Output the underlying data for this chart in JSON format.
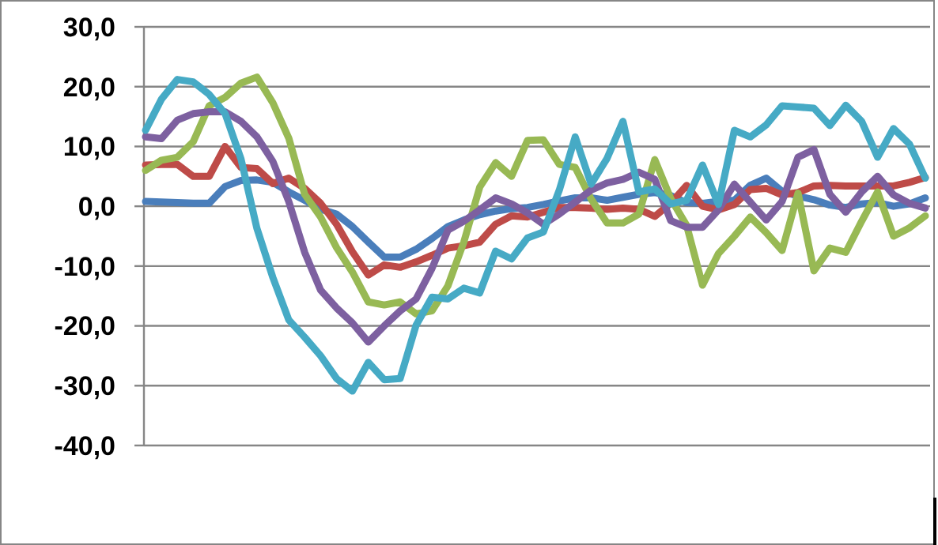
{
  "chart_data": {
    "type": "line",
    "categories": [
      null,
      null,
      null,
      null,
      null,
      null,
      null,
      null,
      null,
      null,
      null,
      null,
      null,
      null,
      null,
      null,
      null,
      null,
      null,
      null,
      null,
      null,
      null,
      null,
      null,
      null,
      null,
      null,
      null,
      null,
      null,
      null,
      null,
      null,
      null,
      null,
      null,
      null,
      null,
      null,
      null,
      null,
      null,
      null,
      null,
      null,
      null,
      null,
      null,
      null
    ],
    "series": [
      {
        "color": "#4a7ebb",
        "values": [
          0.8,
          0.7,
          0.6,
          0.5,
          0.5,
          3.3,
          4.3,
          4.4,
          4.0,
          2.4,
          1.0,
          -0.5,
          -1.3,
          -3.4,
          -6,
          -8.5,
          -8.5,
          -7.2,
          -5.4,
          -3.4,
          -2.3,
          -1.4,
          -0.8,
          -0.4,
          -0.2,
          0.3,
          0.9,
          1.4,
          1.4,
          1.0,
          1.5,
          2.0,
          2.3,
          1.8,
          0.6,
          0.5,
          0.8,
          1.0,
          3.5,
          4.7,
          2.5,
          1.7,
          1.1,
          0.2,
          -0.2,
          0.4,
          0.6,
          0,
          0.4,
          1.4
        ]
      },
      {
        "color": "#be4b48",
        "values": [
          6.9,
          7,
          7,
          5,
          5,
          10,
          6.5,
          6.3,
          3.8,
          4.7,
          3,
          0.5,
          -3,
          -7.6,
          -11.5,
          -9.8,
          -10.2,
          -9.3,
          -8.2,
          -7,
          -6.6,
          -6,
          -3,
          -1.6,
          -1.8,
          -1,
          -0.2,
          -0.2,
          -0.3,
          -0.5,
          -0.3,
          -0.5,
          -1.7,
          0.5,
          3.5,
          0,
          -0.6,
          0.3,
          2.8,
          3,
          1.9,
          2.3,
          3.4,
          3.5,
          3.4,
          3.4,
          3.4,
          3.4,
          4,
          4.8
        ]
      },
      {
        "color": "#98b954",
        "values": [
          6,
          7.7,
          8.2,
          10.8,
          16.8,
          18.2,
          20.6,
          21.6,
          17.3,
          11.4,
          2,
          -1.8,
          -6.9,
          -11,
          -16,
          -16.5,
          -16,
          -18,
          -17.5,
          -13.3,
          -6,
          3.2,
          7.3,
          5,
          11,
          11.1,
          7,
          6.5,
          1.2,
          -2.8,
          -2.8,
          -1.3,
          7.8,
          1.3,
          -3.2,
          -13.2,
          -7.9,
          -5,
          -1.8,
          -4.4,
          -7.4,
          2.2,
          -10.8,
          -7,
          -7.7,
          -2.5,
          2.4,
          -5,
          -3.6,
          -1.6
        ]
      },
      {
        "color": "#7d60a0",
        "values": [
          11.6,
          11.3,
          14.4,
          15.5,
          15.8,
          15.8,
          14.2,
          11.6,
          7.5,
          0.8,
          -7.7,
          -14,
          -17,
          -19.5,
          -22.7,
          -20,
          -17.5,
          -15.5,
          -10.4,
          -4,
          -2.5,
          -0.6,
          1.4,
          0.4,
          -1.1,
          -3,
          -1.3,
          0.7,
          2.7,
          3.9,
          4.5,
          5.7,
          4.5,
          -2.4,
          -3.5,
          -3.5,
          -0.6,
          3.7,
          0.7,
          -2.3,
          0.8,
          8.2,
          9.5,
          2,
          -1,
          2.4,
          5,
          1.9,
          0.5,
          -0.3
        ]
      },
      {
        "color": "#46aac5",
        "values": [
          12.7,
          17.9,
          21.2,
          20.8,
          18.7,
          15.5,
          7.9,
          -3.7,
          -11.9,
          -19,
          -21.9,
          -25,
          -28.8,
          -30.9,
          -26.1,
          -29,
          -28.8,
          -19.9,
          -15.2,
          -15.5,
          -13.7,
          -14.5,
          -7.5,
          -8.8,
          -5.3,
          -4.3,
          2.7,
          11.6,
          3.7,
          8,
          14.2,
          2.4,
          2.9,
          0.4,
          1,
          6.9,
          0.3,
          12.7,
          11.6,
          13.6,
          16.8,
          16.6,
          16.4,
          13.5,
          16.9,
          14.2,
          8.2,
          13,
          10.4,
          4.7
        ]
      }
    ],
    "ylim": [
      -40,
      30
    ],
    "yticks": [
      {
        "value": -40,
        "label": "-40,0"
      },
      {
        "value": -30,
        "label": "-30,0"
      },
      {
        "value": -20,
        "label": "-20,0"
      },
      {
        "value": -10,
        "label": "-10,0"
      },
      {
        "value": 0,
        "label": "0,0"
      },
      {
        "value": 10,
        "label": "10,0"
      },
      {
        "value": 20,
        "label": "20,0"
      },
      {
        "value": 30,
        "label": "30,0"
      }
    ],
    "grid": "y",
    "tick_labels": "y",
    "line_style": "solid",
    "marker": "none"
  }
}
